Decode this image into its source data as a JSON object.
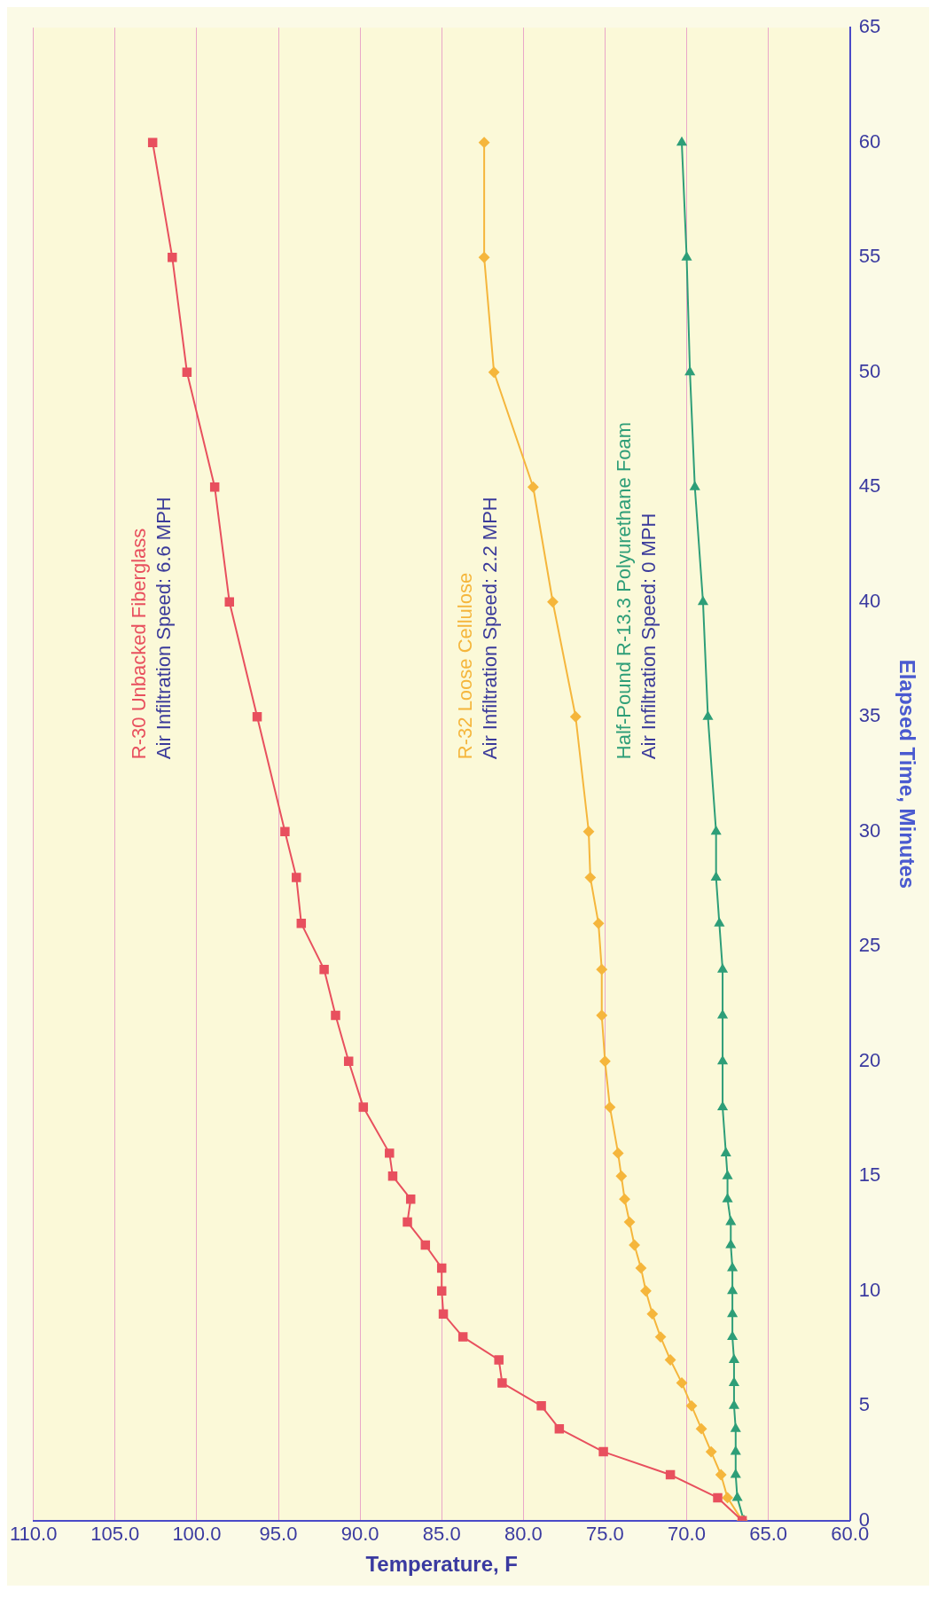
{
  "chart_data": {
    "type": "line",
    "xlabel": "Temperature, F",
    "ylabel": "Elapsed Time, Minutes",
    "xlim": [
      110,
      60
    ],
    "xticks": [
      {
        "value": 110,
        "label": "110.0"
      },
      {
        "value": 105,
        "label": "105.0"
      },
      {
        "value": 100,
        "label": "100.0"
      },
      {
        "value": 95,
        "label": "95.0"
      },
      {
        "value": 90,
        "label": "90.0"
      },
      {
        "value": 85,
        "label": "85.0"
      },
      {
        "value": 80,
        "label": "80.0"
      },
      {
        "value": 75,
        "label": "75.0"
      },
      {
        "value": 70,
        "label": "70.0"
      },
      {
        "value": 65,
        "label": "65.0"
      },
      {
        "value": 60,
        "label": "60.0"
      }
    ],
    "ylim": [
      0,
      65
    ],
    "yticks": [
      0,
      5,
      10,
      15,
      20,
      25,
      30,
      35,
      40,
      45,
      50,
      55,
      60,
      65
    ],
    "grid": "x",
    "legend": false,
    "line_style": "solid",
    "series": [
      {
        "name": "R-30 Unbacked Fiberglass",
        "color": "#e8505e",
        "marker": "square",
        "x": [
          66.6,
          68.1,
          71.0,
          75.1,
          77.8,
          78.9,
          81.3,
          81.5,
          83.7,
          84.9,
          85.0,
          85.0,
          86.0,
          87.1,
          86.9,
          88.0,
          88.2,
          89.8,
          90.7,
          91.5,
          92.2,
          93.6,
          93.9,
          94.6,
          96.3,
          98.0,
          98.9,
          100.6,
          101.5,
          102.7
        ],
        "values": [
          0,
          1,
          2,
          3,
          4,
          5,
          6,
          7,
          8,
          9,
          10,
          11,
          12,
          13,
          14,
          15,
          16,
          18,
          20,
          22,
          24,
          26,
          28,
          30,
          35,
          40,
          45,
          50,
          55,
          60
        ]
      },
      {
        "name": "R-32 Loose Cellulose",
        "color": "#f5b63c",
        "marker": "diamond",
        "x": [
          66.6,
          67.5,
          67.9,
          68.5,
          69.1,
          69.7,
          70.3,
          71.0,
          71.6,
          72.1,
          72.5,
          72.8,
          73.2,
          73.5,
          73.8,
          74.0,
          74.2,
          74.7,
          75.0,
          75.2,
          75.2,
          75.4,
          75.9,
          76.0,
          76.8,
          78.2,
          79.4,
          81.8,
          82.4,
          82.4
        ],
        "values": [
          0,
          1,
          2,
          3,
          4,
          5,
          6,
          7,
          8,
          9,
          10,
          11,
          12,
          13,
          14,
          15,
          16,
          18,
          20,
          22,
          24,
          26,
          28,
          30,
          35,
          40,
          45,
          50,
          55,
          60
        ]
      },
      {
        "name": "Half-Pound R-13.3 Polyurethane Foam",
        "color": "#2e9e78",
        "marker": "triangle",
        "x": [
          66.5,
          66.9,
          67.0,
          67.0,
          67.0,
          67.1,
          67.1,
          67.1,
          67.2,
          67.2,
          67.2,
          67.2,
          67.3,
          67.3,
          67.5,
          67.5,
          67.6,
          67.8,
          67.8,
          67.8,
          67.8,
          68.0,
          68.2,
          68.2,
          68.7,
          69.0,
          69.5,
          69.8,
          70.0,
          70.3
        ],
        "values": [
          0,
          1,
          2,
          3,
          4,
          5,
          6,
          7,
          8,
          9,
          10,
          11,
          12,
          13,
          14,
          15,
          16,
          18,
          20,
          22,
          24,
          26,
          28,
          30,
          35,
          40,
          45,
          50,
          55,
          60
        ]
      }
    ],
    "annotations": [
      "Air Infiltration Speed: 6.6 MPH",
      "Air Infiltration Speed: 2.2 MPH",
      "Air Infiltration Speed: 0 MPH"
    ]
  }
}
